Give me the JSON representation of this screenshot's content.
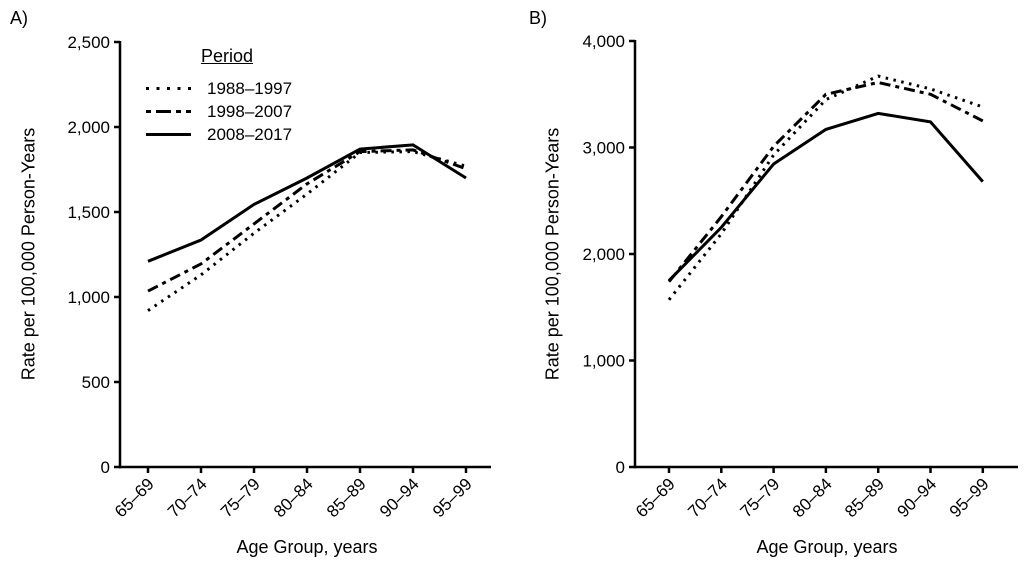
{
  "figure": {
    "background_color": "#ffffff",
    "line_color": "#000000",
    "panels": [
      "A)",
      "B)"
    ]
  },
  "legend": {
    "title": "Period",
    "items": [
      {
        "label": "1988–1997",
        "style": "dotted"
      },
      {
        "label": "1998–2007",
        "style": "dashdot"
      },
      {
        "label": "2008–2017",
        "style": "solid"
      }
    ]
  },
  "chart_data": [
    {
      "type": "line",
      "panel": "A",
      "title": "A)",
      "xlabel": "Age Group, years",
      "ylabel": "Rate per 100,000 Person-Years",
      "categories": [
        "65–69",
        "70–74",
        "75–79",
        "80–84",
        "85–89",
        "90–94",
        "95–99"
      ],
      "ylim": [
        0,
        2500
      ],
      "ytick_step": 500,
      "ytick_labels": [
        "0",
        "500",
        "1,000",
        "1,500",
        "2,000",
        "2,500"
      ],
      "grid": false,
      "legend_position": "top-left",
      "series": [
        {
          "name": "1988–1997",
          "style": "dotted",
          "values": [
            920,
            1130,
            1375,
            1605,
            1850,
            1855,
            1770
          ]
        },
        {
          "name": "1998–2007",
          "style": "dashdot",
          "values": [
            1035,
            1195,
            1430,
            1665,
            1855,
            1865,
            1755
          ]
        },
        {
          "name": "2008–2017",
          "style": "solid",
          "values": [
            1210,
            1335,
            1545,
            1700,
            1870,
            1895,
            1700
          ]
        }
      ]
    },
    {
      "type": "line",
      "panel": "B",
      "title": "B)",
      "xlabel": "Age Group, years",
      "ylabel": "Rate per 100,000 Person-Years",
      "categories": [
        "65–69",
        "70–74",
        "75–79",
        "80–84",
        "85–89",
        "90–94",
        "95–99"
      ],
      "ylim": [
        0,
        4000
      ],
      "ytick_step": 1000,
      "ytick_labels": [
        "0",
        "1,000",
        "2,000",
        "3,000",
        "4,000"
      ],
      "grid": false,
      "legend_position": "none",
      "series": [
        {
          "name": "1988–1997",
          "style": "dotted",
          "values": [
            1570,
            2190,
            2930,
            3450,
            3670,
            3550,
            3380
          ]
        },
        {
          "name": "1998–2007",
          "style": "dashdot",
          "values": [
            1740,
            2350,
            3010,
            3500,
            3610,
            3500,
            3250
          ]
        },
        {
          "name": "2008–2017",
          "style": "solid",
          "values": [
            1750,
            2250,
            2845,
            3170,
            3320,
            3240,
            2680
          ]
        }
      ]
    }
  ]
}
